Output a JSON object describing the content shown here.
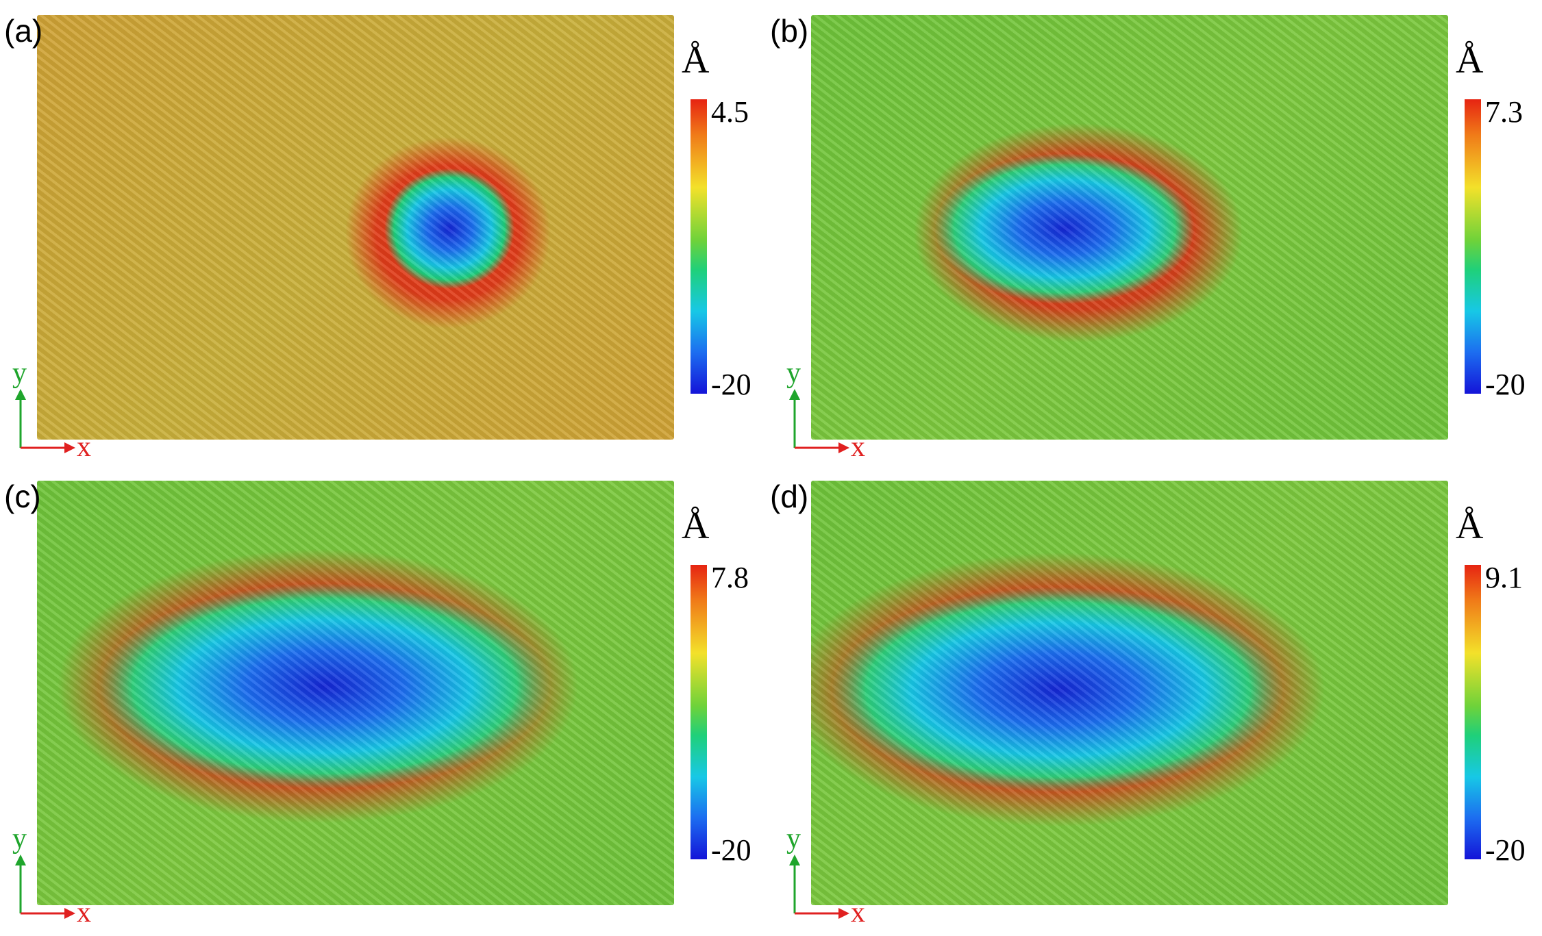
{
  "colors": {
    "axis_y": "#1fa52c",
    "axis_x": "#e02020",
    "colormap_top": "#e62412",
    "colormap_bottom": "#1414d8"
  },
  "unit": "Å",
  "panels": [
    {
      "label": "(a)",
      "colorbar_max": "4.5",
      "colorbar_min": "-20",
      "axis_y": "y",
      "axis_x": "x"
    },
    {
      "label": "(b)",
      "colorbar_max": "7.3",
      "colorbar_min": "-20",
      "axis_y": "y",
      "axis_x": "x"
    },
    {
      "label": "(c)",
      "colorbar_max": "7.8",
      "colorbar_min": "-20",
      "axis_y": "y",
      "axis_x": "x"
    },
    {
      "label": "(d)",
      "colorbar_max": "9.1",
      "colorbar_min": "-20",
      "axis_y": "y",
      "axis_x": "x"
    }
  ]
}
